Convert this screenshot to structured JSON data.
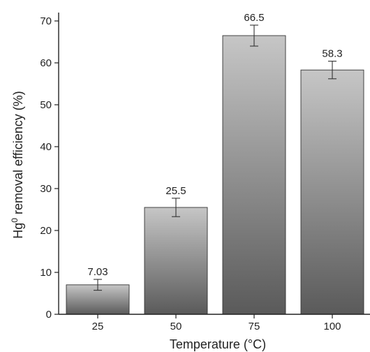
{
  "chart_data": {
    "type": "bar",
    "categories": [
      "25",
      "50",
      "75",
      "100"
    ],
    "values": [
      7.03,
      25.5,
      66.5,
      58.3
    ],
    "errors": [
      1.3,
      2.2,
      2.5,
      2.1
    ],
    "data_labels": [
      "7.03",
      "25.5",
      "66.5",
      "58.3"
    ],
    "xlabel": "Temperature (°C)",
    "ylabel_prefix": "Hg",
    "ylabel_superscript": "0",
    "ylabel_suffix": " removal efficiency (%)",
    "ylim": [
      0,
      72
    ],
    "yticks": [
      0,
      10,
      20,
      30,
      40,
      50,
      60,
      70
    ],
    "grid": false,
    "bar_gradient": {
      "top": "#c6c6c6",
      "bottom": "#5a5a5a"
    }
  }
}
